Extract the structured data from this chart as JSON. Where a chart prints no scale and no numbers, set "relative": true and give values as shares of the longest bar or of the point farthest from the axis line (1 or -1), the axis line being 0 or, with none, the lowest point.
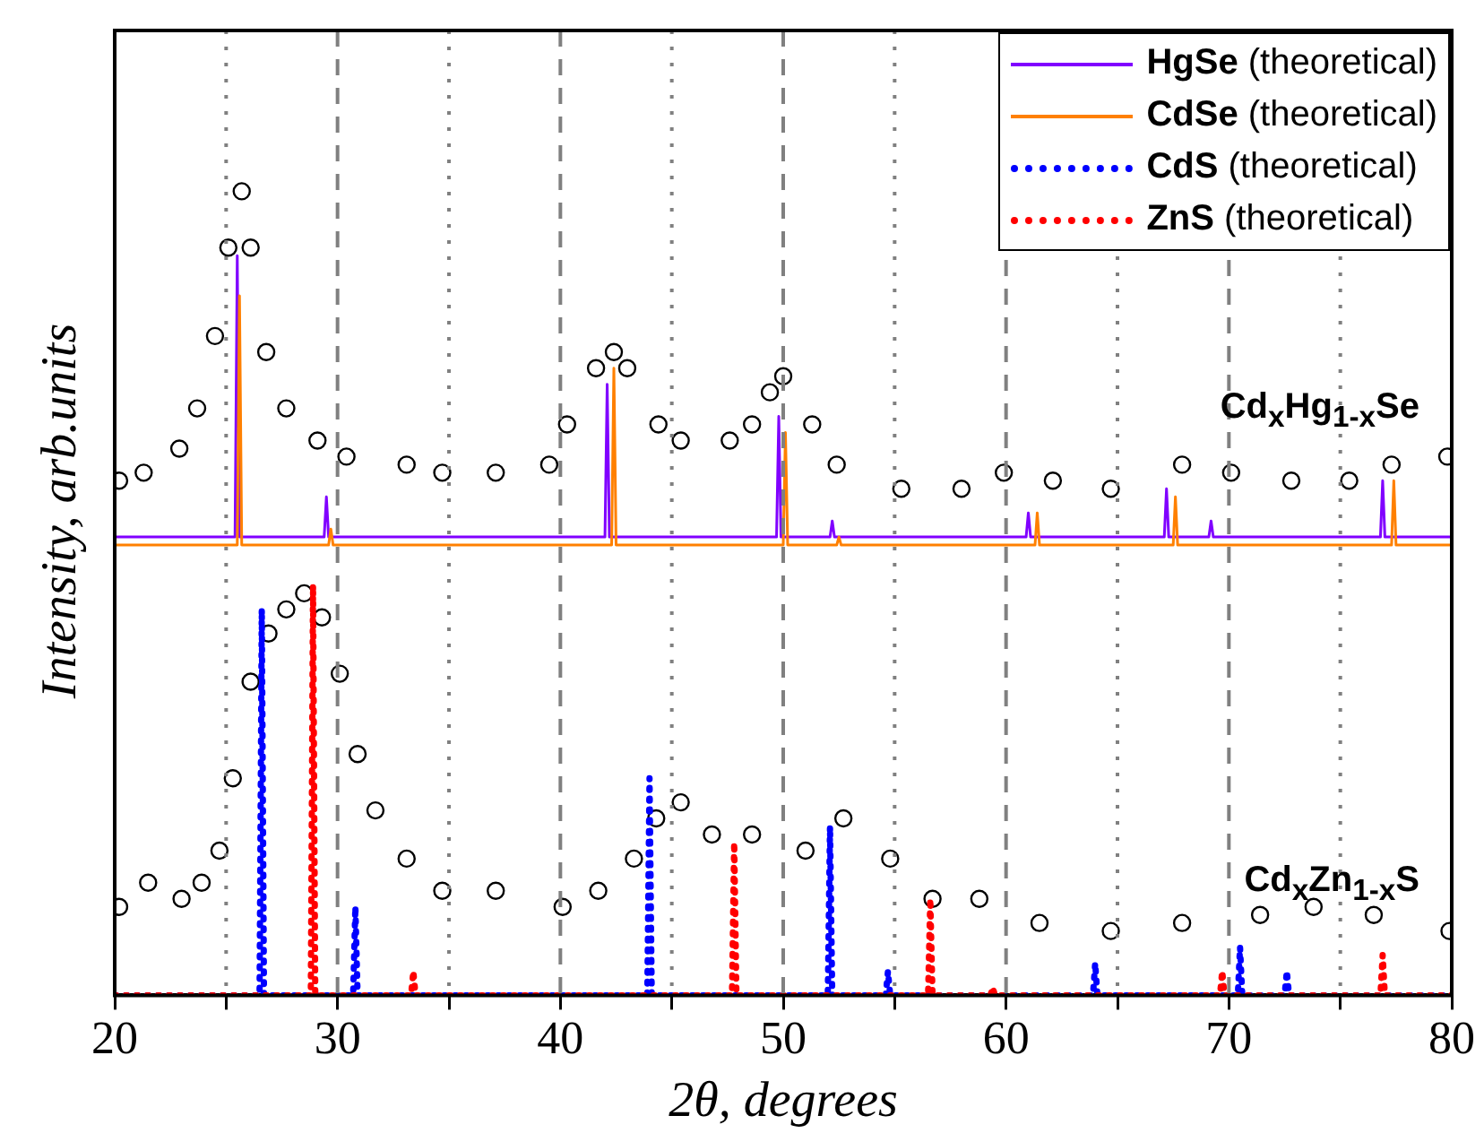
{
  "chart_data": {
    "type": "line",
    "xlabel": "2θ, degrees",
    "ylabel": "Intensity, arb.units",
    "relative": true,
    "xlim": [
      20,
      80
    ],
    "xticks": [
      20,
      {
        "value": 25,
        "label": null
      },
      30,
      {
        "value": 35,
        "label": null
      },
      40,
      {
        "value": 45,
        "label": null
      },
      50,
      {
        "value": 55,
        "label": null
      },
      60,
      {
        "value": 65,
        "label": null
      },
      70,
      {
        "value": 75,
        "label": null
      },
      80
    ],
    "grid": "x",
    "legend": "top right",
    "series": [
      {
        "name": "Cd$_{x}$Hg$_{1-x}$Se",
        "type": "scatter",
        "marker": "circle",
        "color": "#000000",
        "x": [
          20.2,
          21.3,
          22.9,
          23.7,
          24.5,
          25.1,
          25.7,
          26.1,
          26.8,
          27.7,
          29.1,
          30.4,
          33.1,
          34.7,
          37.1,
          39.5,
          40.3,
          41.6,
          42.4,
          43.0,
          44.4,
          45.4,
          47.6,
          48.6,
          49.4,
          50.0,
          51.3,
          52.4,
          55.3,
          58.0,
          59.9,
          62.1,
          64.7,
          67.9,
          70.1,
          72.8,
          75.4,
          77.3,
          79.8
        ],
        "values": [
          0.64,
          0.65,
          0.68,
          0.73,
          0.82,
          0.93,
          1.0,
          0.93,
          0.8,
          0.73,
          0.69,
          0.67,
          0.66,
          0.65,
          0.65,
          0.66,
          0.71,
          0.78,
          0.8,
          0.78,
          0.71,
          0.69,
          0.69,
          0.71,
          0.75,
          0.77,
          0.71,
          0.66,
          0.63,
          0.63,
          0.65,
          0.64,
          0.63,
          0.66,
          0.65,
          0.64,
          0.64,
          0.66,
          0.67
        ]
      },
      {
        "name": "Cd$_{x}$Zn$_{1-x}$S",
        "type": "scatter",
        "marker": "circle",
        "color": "#000000",
        "x": [
          20.2,
          21.5,
          23.0,
          23.9,
          24.7,
          25.3,
          26.1,
          26.9,
          27.7,
          28.5,
          29.3,
          30.1,
          30.9,
          31.7,
          33.1,
          34.7,
          37.1,
          40.1,
          41.7,
          43.3,
          44.3,
          45.4,
          46.8,
          48.6,
          51.0,
          52.7,
          54.8,
          56.7,
          58.8,
          61.5,
          64.7,
          67.9,
          71.4,
          73.8,
          76.5,
          79.9
        ],
        "values": [
          0.11,
          0.14,
          0.12,
          0.14,
          0.18,
          0.27,
          0.39,
          0.45,
          0.48,
          0.5,
          0.47,
          0.4,
          0.3,
          0.23,
          0.17,
          0.13,
          0.13,
          0.11,
          0.13,
          0.17,
          0.22,
          0.24,
          0.2,
          0.2,
          0.18,
          0.22,
          0.17,
          0.12,
          0.12,
          0.09,
          0.08,
          0.09,
          0.1,
          0.11,
          0.1,
          0.08
        ]
      },
      {
        "name": "HgSe (theoretical)",
        "line_style": "solid",
        "color": "#8000ff",
        "x": [
          20,
          25.4,
          25.5,
          25.6,
          29.4,
          29.5,
          29.6,
          42.0,
          42.1,
          42.2,
          49.7,
          49.8,
          49.9,
          52.1,
          52.2,
          52.3,
          60.9,
          61.0,
          61.1,
          67.1,
          67.2,
          67.3,
          69.1,
          69.2,
          69.3,
          76.8,
          76.9,
          77.0,
          80
        ],
        "values": [
          0.57,
          0.57,
          0.92,
          0.57,
          0.57,
          0.62,
          0.57,
          0.57,
          0.76,
          0.57,
          0.57,
          0.72,
          0.57,
          0.57,
          0.59,
          0.57,
          0.57,
          0.6,
          0.57,
          0.57,
          0.63,
          0.57,
          0.57,
          0.59,
          0.57,
          0.57,
          0.64,
          0.57,
          0.57
        ]
      },
      {
        "name": "CdSe (theoretical)",
        "line_style": "solid",
        "color": "#ff8000",
        "x": [
          20,
          25.5,
          25.6,
          25.7,
          29.6,
          29.7,
          29.8,
          42.3,
          42.4,
          42.5,
          50.0,
          50.1,
          50.2,
          52.4,
          52.5,
          52.6,
          61.3,
          61.4,
          61.5,
          67.5,
          67.6,
          67.7,
          77.3,
          77.4,
          77.5,
          80
        ],
        "values": [
          0.56,
          0.56,
          0.87,
          0.56,
          0.56,
          0.58,
          0.56,
          0.56,
          0.78,
          0.56,
          0.56,
          0.7,
          0.56,
          0.56,
          0.57,
          0.56,
          0.56,
          0.6,
          0.56,
          0.56,
          0.62,
          0.56,
          0.56,
          0.64,
          0.56,
          0.56
        ]
      },
      {
        "name": "CdS (theoretical)",
        "line_style": "dotted",
        "color": "#0000ff",
        "x": [
          20,
          26.5,
          26.6,
          26.7,
          30.7,
          30.8,
          30.9,
          43.9,
          44.0,
          44.1,
          52.0,
          52.1,
          52.2,
          54.6,
          54.7,
          54.8,
          63.9,
          64.0,
          64.1,
          70.4,
          70.5,
          70.6,
          72.5,
          72.6,
          72.7,
          80
        ],
        "values": [
          0,
          0,
          0.48,
          0,
          0,
          0.11,
          0,
          0,
          0.27,
          0,
          0,
          0.21,
          0,
          0,
          0.03,
          0,
          0,
          0.04,
          0,
          0,
          0.06,
          0,
          0,
          0.03,
          0,
          0
        ]
      },
      {
        "name": "ZnS (theoretical)",
        "line_style": "dotted",
        "color": "#ff0000",
        "x": [
          20,
          28.8,
          28.9,
          29.0,
          33.3,
          33.4,
          33.5,
          47.7,
          47.8,
          47.9,
          56.5,
          56.6,
          56.7,
          59.3,
          59.4,
          59.5,
          69.6,
          69.7,
          69.8,
          76.8,
          76.9,
          77.0,
          80
        ],
        "values": [
          0,
          0,
          0.51,
          0,
          0,
          0.03,
          0,
          0,
          0.19,
          0,
          0,
          0.12,
          0,
          0,
          0.01,
          0,
          0,
          0.03,
          0,
          0,
          0.05,
          0,
          0
        ]
      }
    ]
  }
}
